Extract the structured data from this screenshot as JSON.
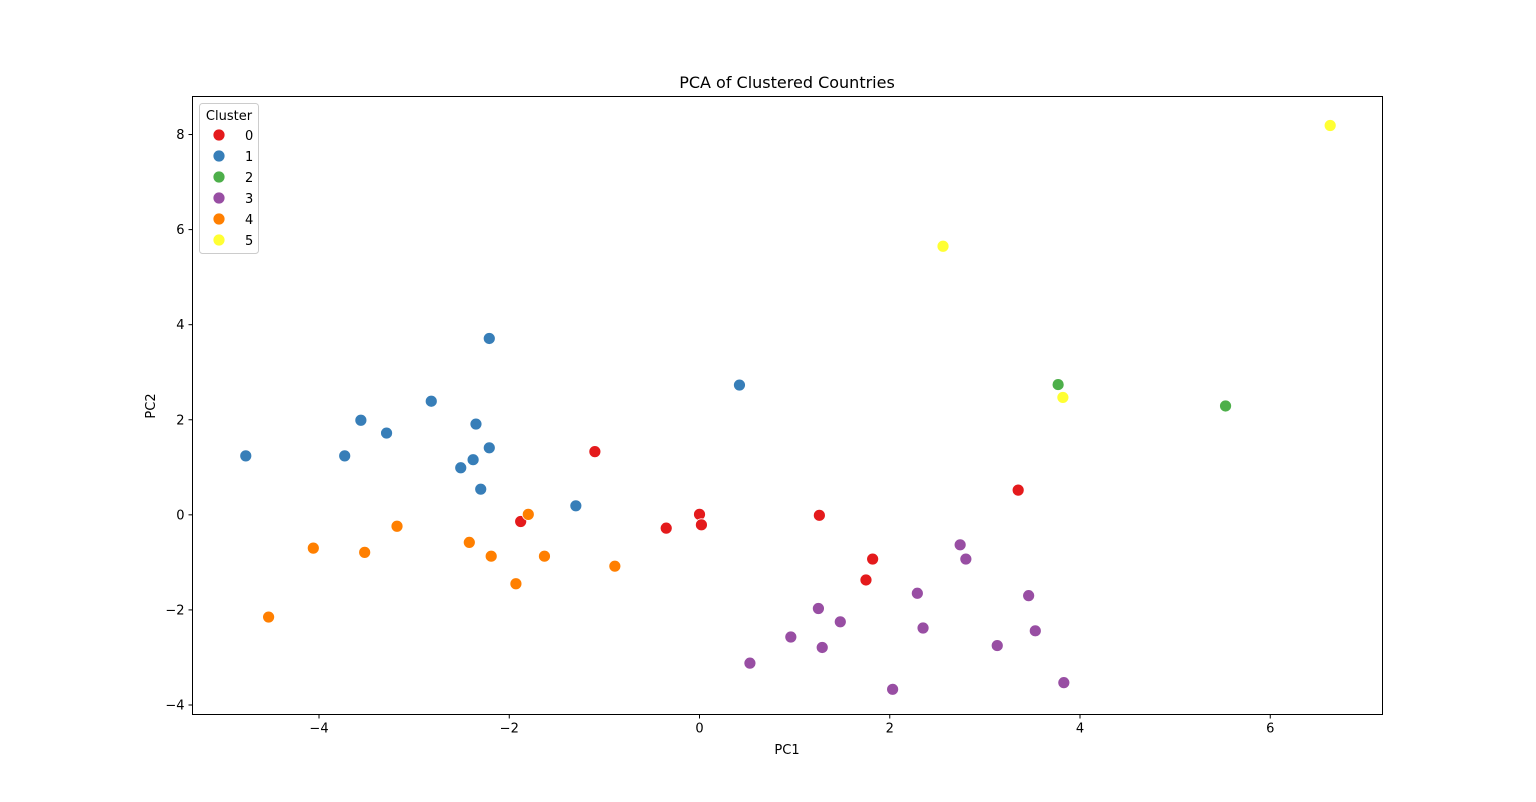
{
  "chart_data": {
    "type": "scatter",
    "title": "PCA of Clustered Countries",
    "xlabel": "PC1",
    "ylabel": "PC2",
    "xlim": [
      -5.33,
      7.18
    ],
    "ylim": [
      -4.2,
      8.8
    ],
    "xticks": [
      -4,
      -2,
      0,
      2,
      4,
      6
    ],
    "yticks": [
      -4,
      -2,
      0,
      2,
      4,
      6,
      8
    ],
    "xtick_labels": [
      "−4",
      "−2",
      "0",
      "2",
      "4",
      "6"
    ],
    "ytick_labels": [
      "−4",
      "−2",
      "0",
      "2",
      "4",
      "6",
      "8"
    ],
    "grid": false,
    "legend": {
      "title": "Cluster",
      "placement": "upper-left"
    },
    "series": [
      {
        "name": "0",
        "color": "#e41a1c",
        "points": [
          [
            -1.1,
            1.33
          ],
          [
            -1.88,
            -0.14
          ],
          [
            -0.35,
            -0.28
          ],
          [
            0.0,
            0.01
          ],
          [
            0.02,
            -0.21
          ],
          [
            1.26,
            -0.01
          ],
          [
            1.82,
            -0.93
          ],
          [
            1.75,
            -1.37
          ],
          [
            3.35,
            0.52
          ]
        ]
      },
      {
        "name": "1",
        "color": "#377eb8",
        "points": [
          [
            -4.77,
            1.24
          ],
          [
            -3.73,
            1.24
          ],
          [
            -3.56,
            1.99
          ],
          [
            -3.29,
            1.72
          ],
          [
            -2.82,
            2.39
          ],
          [
            -2.51,
            0.99
          ],
          [
            -2.38,
            1.16
          ],
          [
            -2.35,
            1.91
          ],
          [
            -2.3,
            0.54
          ],
          [
            -2.21,
            1.41
          ],
          [
            -2.21,
            3.71
          ],
          [
            -1.3,
            0.19
          ],
          [
            0.42,
            2.73
          ]
        ]
      },
      {
        "name": "2",
        "color": "#4daf4a",
        "points": [
          [
            3.77,
            2.74
          ],
          [
            5.53,
            2.29
          ]
        ]
      },
      {
        "name": "3",
        "color": "#984ea3",
        "points": [
          [
            0.53,
            -3.12
          ],
          [
            0.96,
            -2.57
          ],
          [
            1.25,
            -1.97
          ],
          [
            1.29,
            -2.79
          ],
          [
            1.48,
            -2.25
          ],
          [
            2.03,
            -3.67
          ],
          [
            2.29,
            -1.65
          ],
          [
            2.35,
            -2.38
          ],
          [
            2.74,
            -0.63
          ],
          [
            2.8,
            -0.93
          ],
          [
            3.13,
            -2.75
          ],
          [
            3.46,
            -1.7
          ],
          [
            3.53,
            -2.44
          ],
          [
            3.83,
            -3.53
          ]
        ]
      },
      {
        "name": "4",
        "color": "#ff7f00",
        "points": [
          [
            -4.53,
            -2.15
          ],
          [
            -4.06,
            -0.7
          ],
          [
            -3.52,
            -0.79
          ],
          [
            -3.18,
            -0.24
          ],
          [
            -2.42,
            -0.58
          ],
          [
            -2.19,
            -0.87
          ],
          [
            -1.93,
            -1.45
          ],
          [
            -1.8,
            0.01
          ],
          [
            -1.63,
            -0.87
          ],
          [
            -0.89,
            -1.08
          ]
        ]
      },
      {
        "name": "5",
        "color": "#ffff33",
        "points": [
          [
            2.56,
            5.65
          ],
          [
            3.82,
            2.47
          ],
          [
            6.63,
            8.19
          ]
        ]
      }
    ]
  }
}
